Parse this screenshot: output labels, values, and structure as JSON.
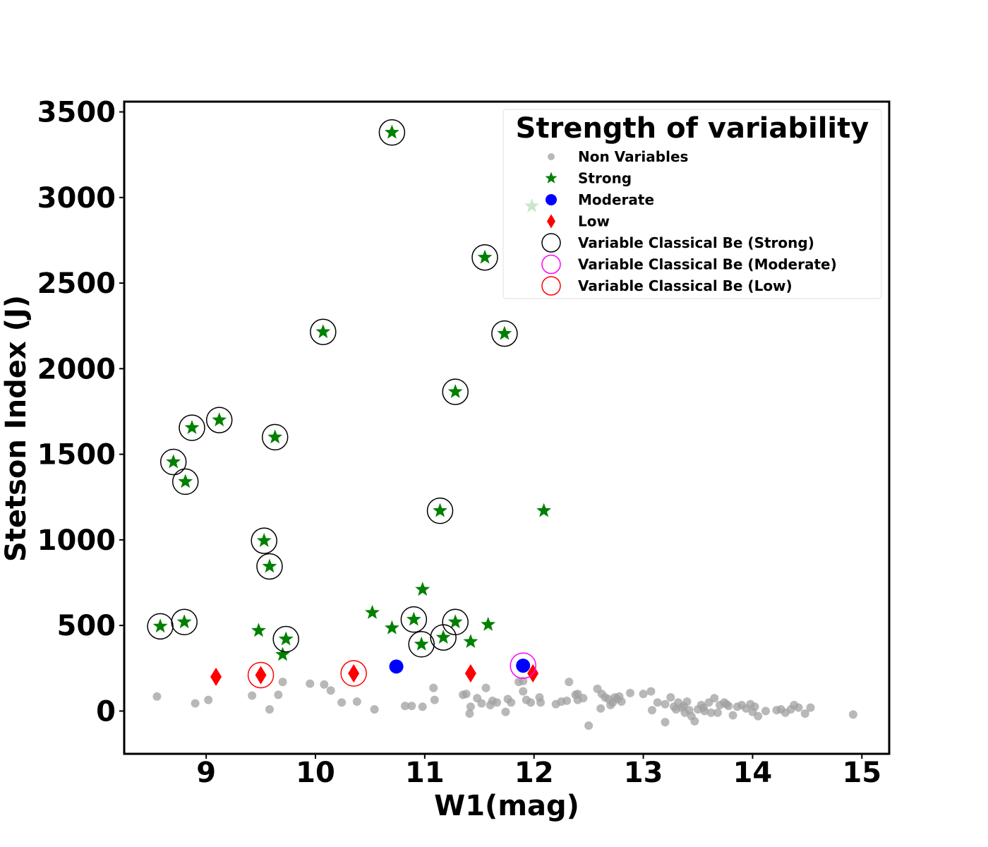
{
  "chart_data": {
    "type": "scatter",
    "title": "",
    "xlabel": "W1(mag)",
    "ylabel": "Stetson Index (J)",
    "xlim": [
      8.25,
      15.25
    ],
    "ylim": [
      -250,
      3560
    ],
    "xticks": [
      9,
      10,
      11,
      12,
      13,
      14,
      15
    ],
    "yticks": [
      0,
      500,
      1000,
      1500,
      2000,
      2500,
      3000,
      3500
    ],
    "grid": false,
    "legend": {
      "title": "Strength of variability",
      "placement": "top-right",
      "entries": [
        "Non Variables",
        "Strong",
        "Moderate",
        "Low",
        "Variable Classical Be (Strong)",
        "Variable Classical Be (Moderate)",
        "Variable Classical Be (Low)"
      ]
    },
    "colors": {
      "non_variables": "#a0a0a0",
      "strong": "#008000",
      "moderate": "#0000ff",
      "low": "#ff0000",
      "be_strong_ring": "#000000",
      "be_moderate_ring": "#ff00ff",
      "be_low_ring": "#ff0000"
    },
    "series": [
      {
        "name": "Non Variables",
        "marker": "circle",
        "x": [
          8.55,
          8.9,
          9.02,
          9.42,
          9.58,
          9.66,
          9.7,
          9.95,
          10.08,
          10.14,
          10.24,
          10.38,
          10.54,
          10.82,
          10.88,
          10.98,
          11.08,
          11.09,
          11.35,
          11.38,
          11.41,
          11.42,
          11.48,
          11.52,
          11.56,
          11.6,
          11.62,
          11.66,
          11.74,
          11.76,
          11.79,
          11.86,
          11.9,
          11.9,
          11.93,
          11.97,
          12.05,
          12.06,
          12.2,
          12.25,
          12.3,
          12.32,
          12.38,
          12.4,
          12.4,
          12.45,
          12.5,
          12.58,
          12.61,
          12.62,
          12.65,
          12.68,
          12.7,
          12.72,
          12.74,
          12.76,
          12.78,
          12.8,
          12.88,
          13.0,
          13.07,
          13.08,
          13.13,
          13.2,
          13.2,
          13.25,
          13.28,
          13.3,
          13.32,
          13.35,
          13.37,
          13.38,
          13.4,
          13.42,
          13.44,
          13.47,
          13.5,
          13.53,
          13.55,
          13.56,
          13.6,
          13.62,
          13.65,
          13.68,
          13.7,
          13.74,
          13.76,
          13.78,
          13.82,
          13.86,
          13.9,
          13.94,
          13.98,
          14.0,
          14.02,
          14.05,
          14.12,
          14.22,
          14.26,
          14.3,
          14.35,
          14.38,
          14.42,
          14.48,
          14.53,
          14.92
        ],
        "y": [
          85,
          45,
          65,
          90,
          10,
          95,
          170,
          160,
          155,
          120,
          50,
          55,
          10,
          30,
          30,
          25,
          135,
          65,
          95,
          100,
          -15,
          25,
          75,
          45,
          135,
          35,
          60,
          50,
          -5,
          70,
          50,
          170,
          175,
          115,
          65,
          50,
          80,
          50,
          40,
          55,
          60,
          170,
          95,
          65,
          100,
          75,
          -85,
          130,
          15,
          100,
          80,
          70,
          35,
          50,
          80,
          70,
          85,
          55,
          105,
          100,
          115,
          5,
          50,
          -65,
          40,
          80,
          25,
          10,
          50,
          20,
          30,
          -10,
          55,
          5,
          -30,
          -60,
          10,
          35,
          20,
          0,
          50,
          -10,
          75,
          -10,
          35,
          50,
          40,
          30,
          -25,
          25,
          35,
          15,
          40,
          -5,
          25,
          -30,
          0,
          5,
          10,
          -10,
          10,
          35,
          20,
          -15,
          20,
          -20
        ]
      },
      {
        "name": "Strong",
        "marker": "star",
        "x": [
          8.58,
          8.7,
          8.8,
          8.81,
          8.87,
          9.12,
          9.48,
          9.53,
          9.58,
          9.63,
          9.7,
          9.73,
          10.07,
          10.52,
          10.7,
          10.7,
          10.9,
          10.97,
          10.98,
          11.14,
          11.17,
          11.28,
          11.28,
          11.42,
          11.55,
          11.58,
          11.73,
          11.98,
          12.09
        ],
        "y": [
          495,
          1455,
          520,
          1340,
          1655,
          1700,
          470,
          995,
          845,
          1600,
          330,
          420,
          2215,
          575,
          485,
          3380,
          535,
          390,
          710,
          1170,
          430,
          520,
          1865,
          405,
          2650,
          505,
          2205,
          2950,
          1170
        ]
      },
      {
        "name": "Moderate",
        "marker": "circle",
        "x": [
          10.74,
          11.9
        ],
        "y": [
          260,
          265
        ]
      },
      {
        "name": "Low",
        "marker": "diamond",
        "x": [
          9.09,
          9.5,
          10.35,
          11.42,
          11.99
        ],
        "y": [
          200,
          210,
          220,
          220,
          220
        ]
      },
      {
        "name": "Variable Classical Be (Strong)",
        "marker": "ring",
        "x": [
          8.58,
          8.7,
          8.8,
          8.81,
          8.87,
          9.12,
          9.53,
          9.58,
          9.63,
          9.73,
          10.07,
          10.7,
          10.9,
          10.97,
          11.14,
          11.17,
          11.28,
          11.28,
          11.55,
          11.73
        ],
        "y": [
          495,
          1455,
          520,
          1340,
          1655,
          1700,
          995,
          845,
          1600,
          420,
          2215,
          3380,
          535,
          390,
          1170,
          430,
          520,
          1865,
          2650,
          2205
        ]
      },
      {
        "name": "Variable Classical Be (Moderate)",
        "marker": "ring",
        "x": [
          11.9
        ],
        "y": [
          265
        ]
      },
      {
        "name": "Variable Classical Be (Low)",
        "marker": "ring",
        "x": [
          9.5,
          10.35
        ],
        "y": [
          210,
          220
        ]
      }
    ]
  }
}
